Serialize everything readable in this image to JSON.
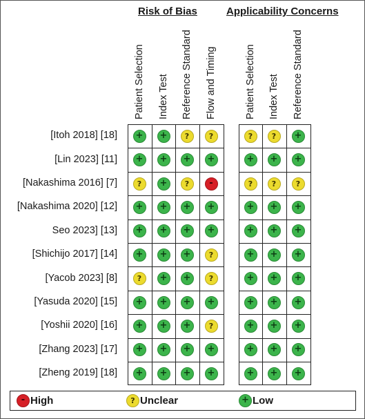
{
  "chart_data": {
    "type": "table",
    "groups": [
      {
        "title": "Risk of Bias",
        "columns": [
          "Patient Selection",
          "Index Test",
          "Reference Standard",
          "Flow and Timing"
        ]
      },
      {
        "title": "Applicability Concerns",
        "columns": [
          "Patient Selection",
          "Index Test",
          "Reference Standard"
        ]
      }
    ],
    "studies": [
      {
        "label": "[Itoh 2018] [18]",
        "risk_of_bias": [
          "low",
          "low",
          "unclear",
          "unclear"
        ],
        "applicability": [
          "unclear",
          "unclear",
          "low"
        ]
      },
      {
        "label": "[Lin 2023] [11]",
        "risk_of_bias": [
          "low",
          "low",
          "low",
          "low"
        ],
        "applicability": [
          "low",
          "low",
          "low"
        ]
      },
      {
        "label": "[Nakashima 2016] [7]",
        "risk_of_bias": [
          "unclear",
          "low",
          "unclear",
          "high"
        ],
        "applicability": [
          "unclear",
          "unclear",
          "unclear"
        ]
      },
      {
        "label": "[Nakashima 2020] [12]",
        "risk_of_bias": [
          "low",
          "low",
          "low",
          "low"
        ],
        "applicability": [
          "low",
          "low",
          "low"
        ]
      },
      {
        "label": "Seo 2023] [13]",
        "risk_of_bias": [
          "low",
          "low",
          "low",
          "low"
        ],
        "applicability": [
          "low",
          "low",
          "low"
        ]
      },
      {
        "label": "[Shichijo 2017] [14]",
        "risk_of_bias": [
          "low",
          "low",
          "low",
          "unclear"
        ],
        "applicability": [
          "low",
          "low",
          "low"
        ]
      },
      {
        "label": "[Yacob 2023] [8]",
        "risk_of_bias": [
          "unclear",
          "low",
          "low",
          "unclear"
        ],
        "applicability": [
          "low",
          "low",
          "low"
        ]
      },
      {
        "label": "[Yasuda 2020] [15]",
        "risk_of_bias": [
          "low",
          "low",
          "low",
          "low"
        ],
        "applicability": [
          "low",
          "low",
          "low"
        ]
      },
      {
        "label": "[Yoshii 2020] [16]",
        "risk_of_bias": [
          "low",
          "low",
          "low",
          "unclear"
        ],
        "applicability": [
          "low",
          "low",
          "low"
        ]
      },
      {
        "label": "[Zhang 2023] [17]",
        "risk_of_bias": [
          "low",
          "low",
          "low",
          "low"
        ],
        "applicability": [
          "low",
          "low",
          "low"
        ]
      },
      {
        "label": "[Zheng 2019] [18]",
        "risk_of_bias": [
          "low",
          "low",
          "low",
          "low"
        ],
        "applicability": [
          "low",
          "low",
          "low"
        ]
      }
    ],
    "legend": [
      {
        "key": "high",
        "label": "High",
        "symbol": "-"
      },
      {
        "key": "unclear",
        "label": "Unclear",
        "symbol": "?"
      },
      {
        "key": "low",
        "label": "Low",
        "symbol": "+"
      }
    ],
    "colors": {
      "high": "#d61f26",
      "unclear": "#ecdb2e",
      "low": "#3cb44b"
    }
  }
}
